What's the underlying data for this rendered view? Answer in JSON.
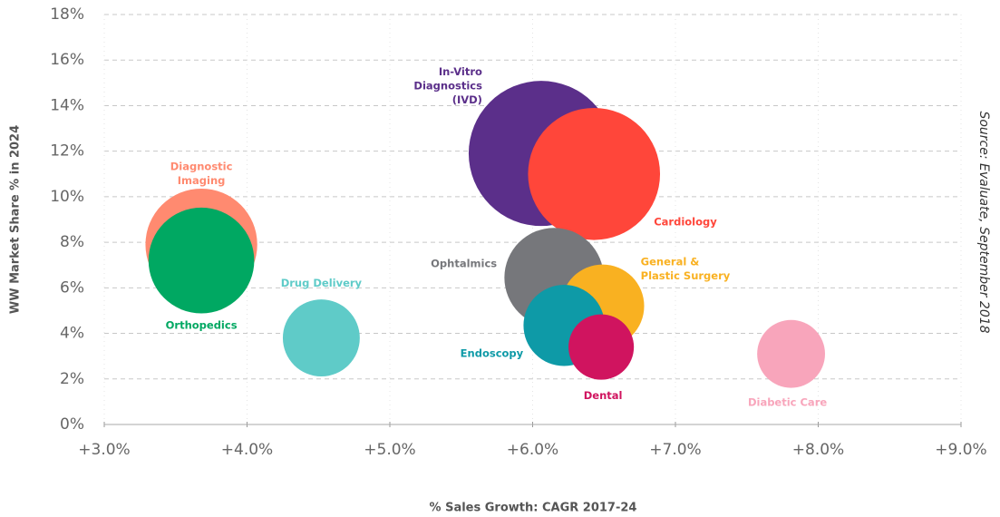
{
  "chart_data": {
    "type": "bubble",
    "x_label": "% Sales Growth: CAGR 2017-24",
    "y_label": "WW Market Share % in 2024",
    "source": "Source: Evaluate, September 2018",
    "xlim": [
      3,
      9
    ],
    "ylim": [
      0,
      18
    ],
    "xticks": [
      {
        "value": 3,
        "label": "+3.0%"
      },
      {
        "value": 4,
        "label": "+4.0%"
      },
      {
        "value": 5,
        "label": "+5.0%"
      },
      {
        "value": 6,
        "label": "+6.0%"
      },
      {
        "value": 7,
        "label": "+7.0%"
      },
      {
        "value": 8,
        "label": "+8.0%"
      },
      {
        "value": 9,
        "label": "+9.0%"
      }
    ],
    "yticks": [
      {
        "value": 0,
        "label": "0%"
      },
      {
        "value": 2,
        "label": "2%"
      },
      {
        "value": 4,
        "label": "4%"
      },
      {
        "value": 6,
        "label": "6%"
      },
      {
        "value": 8,
        "label": "8%"
      },
      {
        "value": 10,
        "label": "10%"
      },
      {
        "value": 12,
        "label": "12%"
      },
      {
        "value": 14,
        "label": "14%"
      },
      {
        "value": 16,
        "label": "16%"
      },
      {
        "value": 18,
        "label": "18%"
      }
    ],
    "grid": true,
    "series": [
      {
        "name": "Diagnostic\nImaging",
        "color": "#ff8a70",
        "x": [
          3.68
        ],
        "values": [
          7.9
        ],
        "sizes": [
          38
        ]
      },
      {
        "name": "Orthopedics",
        "color": "#00a862",
        "x": [
          3.68
        ],
        "values": [
          7.2
        ],
        "sizes": [
          34
        ]
      },
      {
        "name": "Drug Delivery",
        "color": "#5fcbc8",
        "x": [
          4.52
        ],
        "values": [
          3.8
        ],
        "sizes": [
          18
        ]
      },
      {
        "name": "In-Vitro\nDiagnostics\n(IVD)",
        "color": "#5b2f8a",
        "x": [
          6.06
        ],
        "values": [
          11.9
        ],
        "sizes": [
          64
        ]
      },
      {
        "name": "Cardiology",
        "color": "#ff463a",
        "x": [
          6.43
        ],
        "values": [
          11.0
        ],
        "sizes": [
          53
        ]
      },
      {
        "name": "Ophtalmics",
        "color": "#76777b",
        "x": [
          6.15
        ],
        "values": [
          6.45
        ],
        "sizes": [
          30
        ]
      },
      {
        "name": "General &\nPlastic Surgery",
        "color": "#f9b121",
        "x": [
          6.49
        ],
        "values": [
          5.2
        ],
        "sizes": [
          21
        ]
      },
      {
        "name": "Endoscopy",
        "color": "#0e9aa7",
        "x": [
          6.22
        ],
        "values": [
          4.35
        ],
        "sizes": [
          20
        ]
      },
      {
        "name": "Dental",
        "color": "#d0145f",
        "x": [
          6.48
        ],
        "values": [
          3.4
        ],
        "sizes": [
          13
        ]
      },
      {
        "name": "Diabetic Care",
        "color": "#f8a5bb",
        "x": [
          7.81
        ],
        "values": [
          3.1
        ],
        "sizes": [
          14
        ]
      }
    ]
  }
}
